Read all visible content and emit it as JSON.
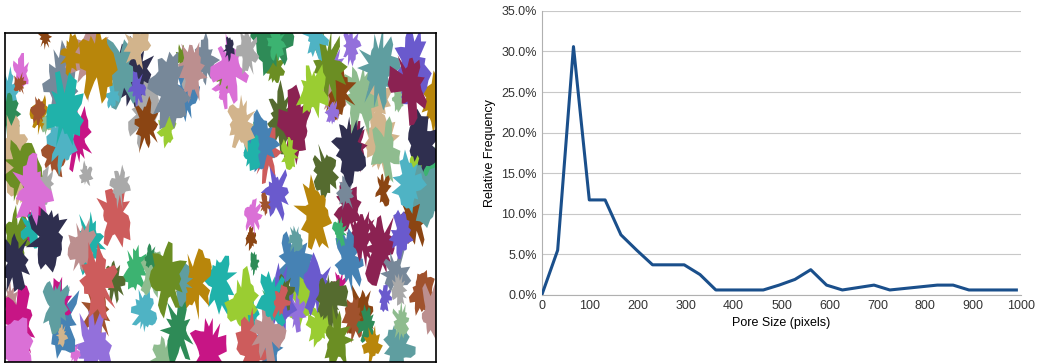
{
  "chart_data": {
    "type": "line",
    "x_label": "Pore Size (pixels)",
    "y_label": "Relative Frequency",
    "x": [
      0,
      33,
      66,
      99,
      132,
      165,
      198,
      231,
      264,
      297,
      330,
      363,
      396,
      429,
      462,
      495,
      528,
      561,
      594,
      627,
      660,
      693,
      726,
      759,
      792,
      825,
      858,
      891,
      924,
      957,
      990
    ],
    "values": [
      0.0,
      5.5,
      30.6,
      11.7,
      11.7,
      7.4,
      5.5,
      3.7,
      3.7,
      3.7,
      2.5,
      0.6,
      0.6,
      0.6,
      0.6,
      1.2,
      1.9,
      3.1,
      1.2,
      0.6,
      0.9,
      1.2,
      0.6,
      0.8,
      1.0,
      1.2,
      1.2,
      0.6,
      0.6,
      0.6,
      0.6
    ],
    "color": "#1a4f8b",
    "xlim": [
      0,
      1000
    ],
    "xticks": [
      0,
      100,
      200,
      300,
      400,
      500,
      600,
      700,
      800,
      900,
      1000
    ],
    "ylim": [
      0,
      35
    ],
    "yticks": [
      {
        "value": 0,
        "label": "0.0%"
      },
      {
        "value": 5,
        "label": "5.0%"
      },
      {
        "value": 10,
        "label": "10.0%"
      },
      {
        "value": 15,
        "label": "15.0%"
      },
      {
        "value": 20,
        "label": "20.0%"
      },
      {
        "value": 25,
        "label": "25.0%"
      },
      {
        "value": 30,
        "label": "30.0%"
      },
      {
        "value": 35,
        "label": "35.0%"
      }
    ],
    "grid": true
  }
}
